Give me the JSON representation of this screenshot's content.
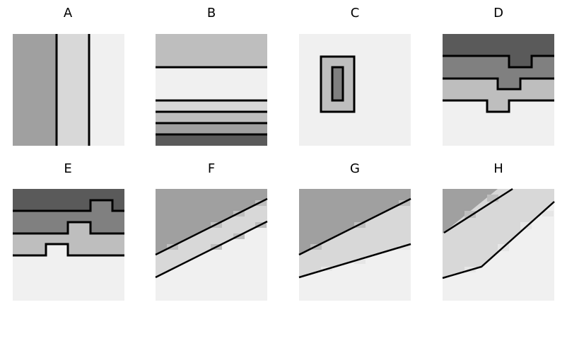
{
  "colors": {
    "background": "#ffffff",
    "lightest": "#f0f0f0",
    "light": "#d8d8d8",
    "medium": "#bebebe",
    "mid": "#a0a0a0",
    "dark": "#808080",
    "darkest": "#5a5a5a",
    "line": "#000000"
  },
  "panels": [
    {
      "label": "A"
    },
    {
      "label": "B"
    },
    {
      "label": "C"
    },
    {
      "label": "D"
    },
    {
      "label": "E"
    },
    {
      "label": "F"
    },
    {
      "label": "G"
    },
    {
      "label": "H"
    }
  ]
}
